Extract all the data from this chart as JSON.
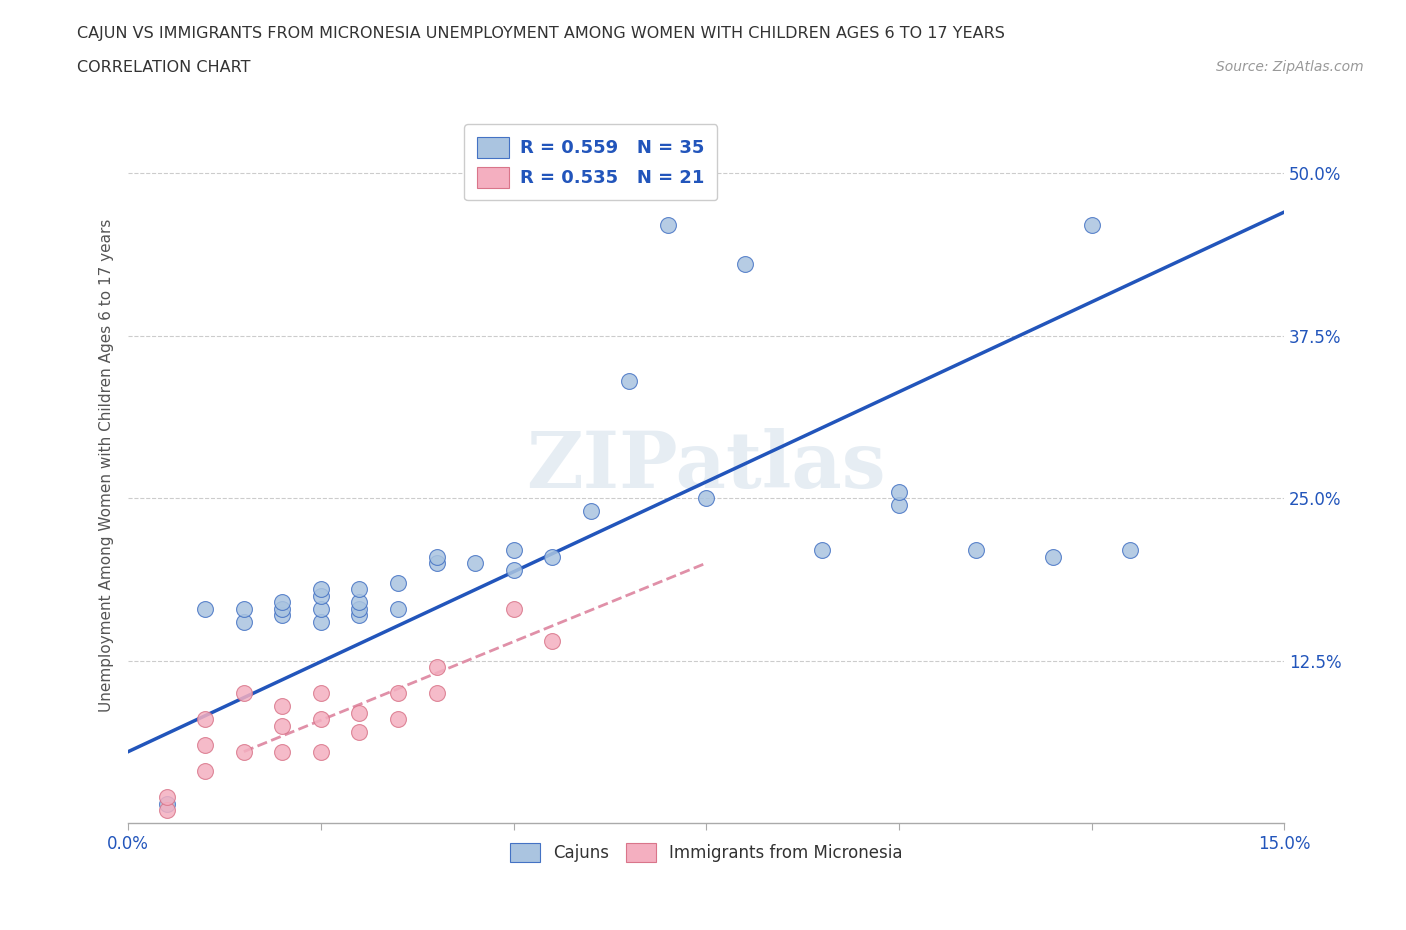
{
  "title_line1": "CAJUN VS IMMIGRANTS FROM MICRONESIA UNEMPLOYMENT AMONG WOMEN WITH CHILDREN AGES 6 TO 17 YEARS",
  "title_line2": "CORRELATION CHART",
  "source_text": "Source: ZipAtlas.com",
  "ylabel": "Unemployment Among Women with Children Ages 6 to 17 years",
  "xlim": [
    0.0,
    0.15
  ],
  "ylim": [
    0.0,
    0.55
  ],
  "ytick_labels": [
    "12.5%",
    "25.0%",
    "37.5%",
    "50.0%"
  ],
  "ytick_values": [
    0.125,
    0.25,
    0.375,
    0.5
  ],
  "cajun_color": "#aac4e0",
  "cajun_edge_color": "#4472c4",
  "micronesia_color": "#f4afc0",
  "micronesia_edge_color": "#d9758a",
  "cajun_line_color": "#2255bb",
  "micronesia_line_color": "#e090a8",
  "legend_r_cajun": "R = 0.559",
  "legend_n_cajun": "N = 35",
  "legend_r_micro": "R = 0.535",
  "legend_n_micro": "N = 21",
  "watermark": "ZIPatlas",
  "cajun_scatter_x": [
    0.005,
    0.01,
    0.015,
    0.015,
    0.02,
    0.02,
    0.02,
    0.025,
    0.025,
    0.025,
    0.025,
    0.03,
    0.03,
    0.03,
    0.03,
    0.035,
    0.035,
    0.04,
    0.04,
    0.045,
    0.05,
    0.05,
    0.055,
    0.06,
    0.065,
    0.07,
    0.075,
    0.08,
    0.09,
    0.1,
    0.1,
    0.11,
    0.12,
    0.125,
    0.13
  ],
  "cajun_scatter_y": [
    0.015,
    0.165,
    0.155,
    0.165,
    0.16,
    0.165,
    0.17,
    0.155,
    0.165,
    0.175,
    0.18,
    0.16,
    0.165,
    0.17,
    0.18,
    0.165,
    0.185,
    0.2,
    0.205,
    0.2,
    0.195,
    0.21,
    0.205,
    0.24,
    0.34,
    0.46,
    0.25,
    0.43,
    0.21,
    0.245,
    0.255,
    0.21,
    0.205,
    0.46,
    0.21
  ],
  "micro_scatter_x": [
    0.005,
    0.005,
    0.01,
    0.01,
    0.01,
    0.015,
    0.015,
    0.02,
    0.02,
    0.02,
    0.025,
    0.025,
    0.025,
    0.03,
    0.03,
    0.035,
    0.035,
    0.04,
    0.04,
    0.05,
    0.055
  ],
  "micro_scatter_y": [
    0.01,
    0.02,
    0.04,
    0.06,
    0.08,
    0.055,
    0.1,
    0.055,
    0.075,
    0.09,
    0.055,
    0.08,
    0.1,
    0.07,
    0.085,
    0.08,
    0.1,
    0.1,
    0.12,
    0.165,
    0.14
  ],
  "cajun_trend_x0": 0.0,
  "cajun_trend_y0": 0.055,
  "cajun_trend_x1": 0.15,
  "cajun_trend_y1": 0.47,
  "micro_trend_x0": 0.015,
  "micro_trend_y0": 0.055,
  "micro_trend_x1": 0.075,
  "micro_trend_y1": 0.2
}
